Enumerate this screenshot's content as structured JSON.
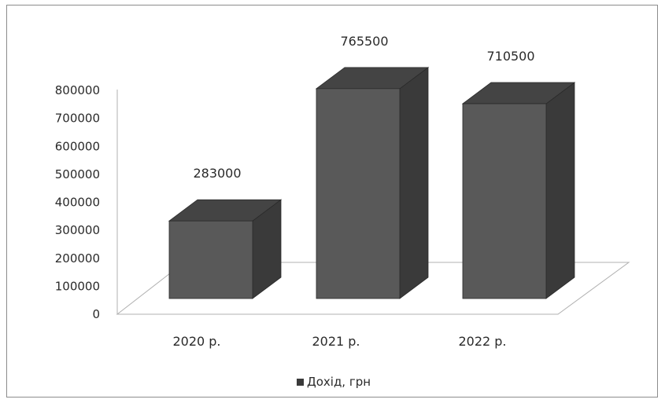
{
  "chart_data": {
    "type": "bar",
    "categories": [
      "2020 р.",
      "2021 р.",
      "2022 р."
    ],
    "series": [
      {
        "name": "Дохід, грн",
        "values": [
          283000,
          765500,
          710500
        ]
      }
    ],
    "data_labels": [
      "283000",
      "765500",
      "710500"
    ],
    "y_ticks": [
      "0",
      "100000",
      "200000",
      "300000",
      "400000",
      "500000",
      "600000",
      "700000",
      "800000"
    ],
    "ylim": [
      0,
      800000
    ],
    "title": "",
    "xlabel": "",
    "ylabel": "",
    "grid": false,
    "three_d": true,
    "legend_position": "bottom",
    "colors": {
      "front": "#595959",
      "side": "#3a3a3a",
      "top": "#444444",
      "outline": "#b0b0b0"
    }
  }
}
